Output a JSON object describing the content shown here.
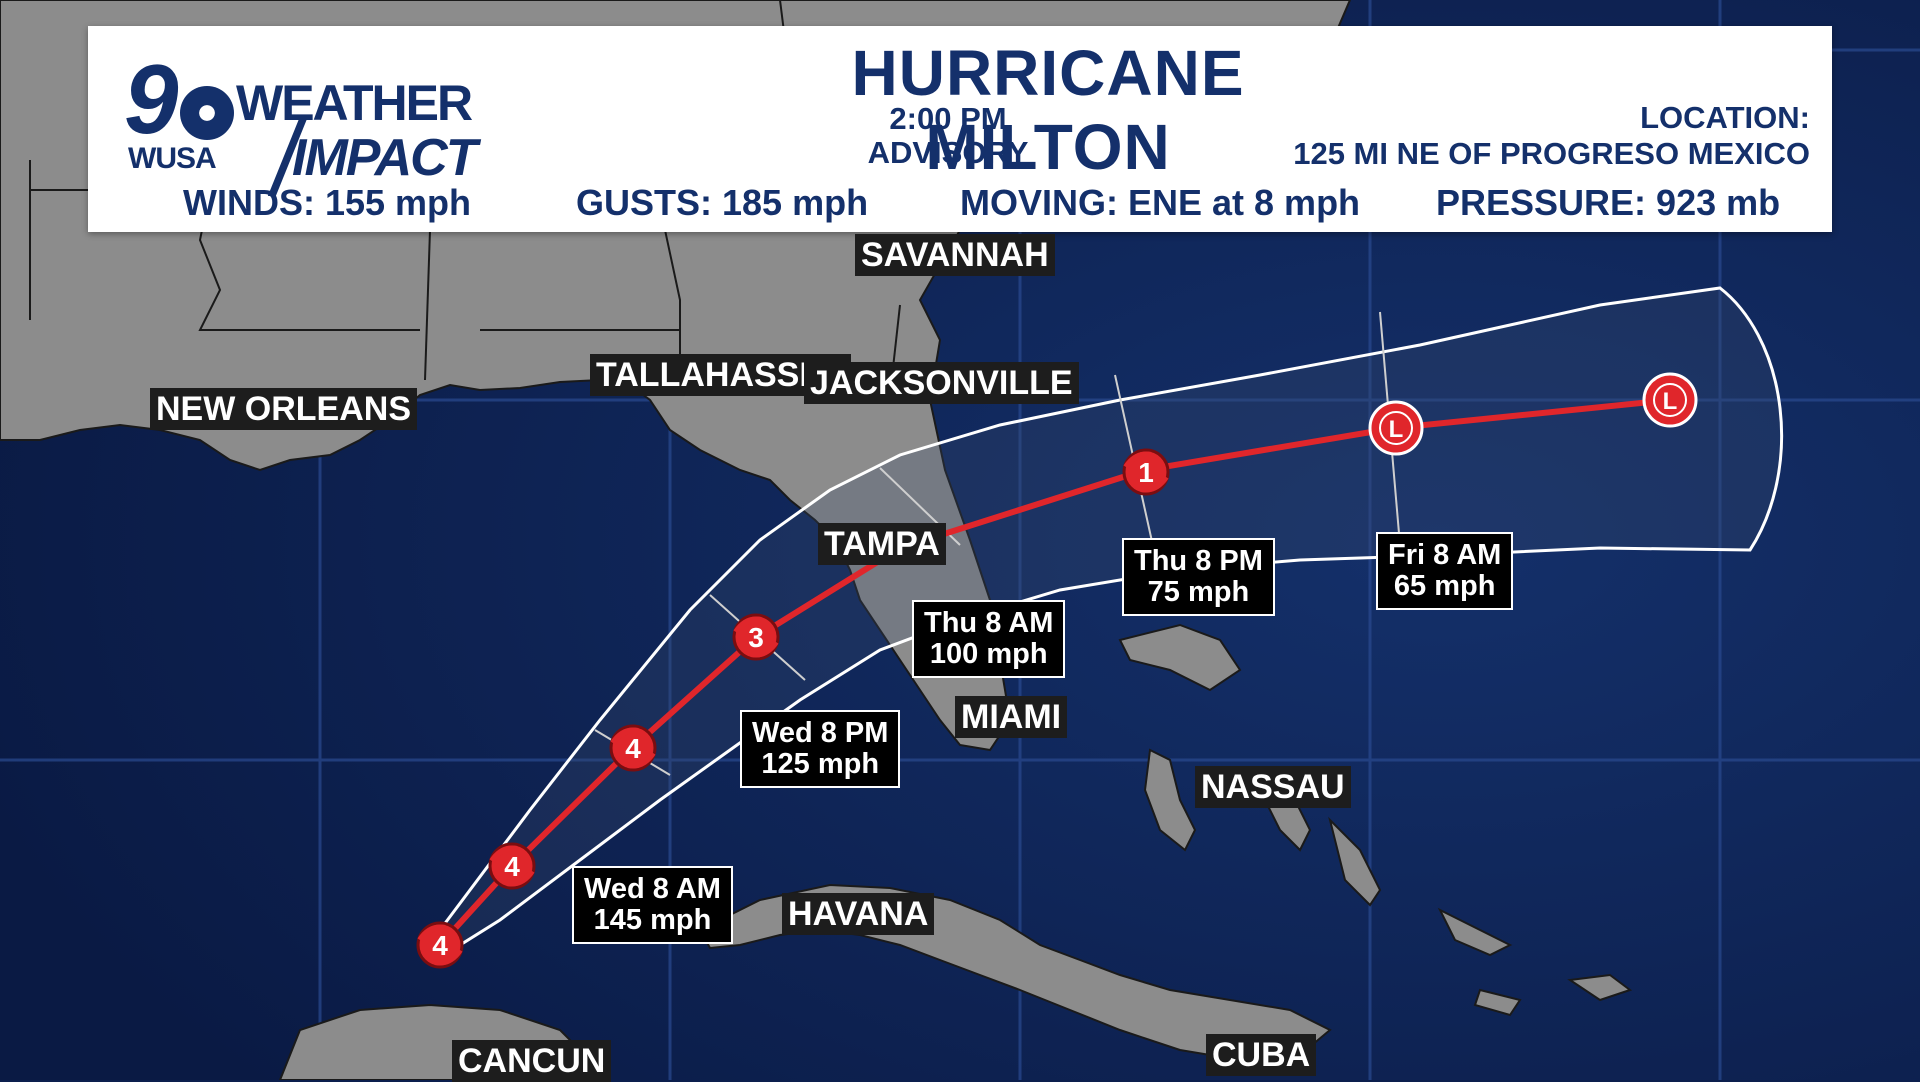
{
  "header": {
    "logo": {
      "number": "9",
      "station": "WUSA",
      "line1": "WEATHER",
      "line2": "IMPACT"
    },
    "title": "HURRICANE MILTON",
    "advisory_time": "2:00 PM",
    "advisory_label": "ADVISORY",
    "location_label": "LOCATION:",
    "location_value": "125 MI NE OF PROGRESO MEXICO",
    "winds": "WINDS:  155 mph",
    "gusts": "GUSTS:  185 mph",
    "moving": "MOVING: ENE at 8 mph",
    "pressure": "PRESSURE: 923 mb"
  },
  "cities": {
    "savannah": "SAVANNAH",
    "tallahassee": "TALLAHASSEE",
    "jacksonville": "JACKSONVILLE",
    "new_orleans": "NEW ORLEANS",
    "tampa": "TAMPA",
    "miami": "MIAMI",
    "nassau": "NASSAU",
    "havana": "HAVANA",
    "cancun": "CANCUN",
    "cuba": "CUBA"
  },
  "forecast": {
    "wed_am": {
      "time": "Wed 8 AM",
      "wind": "145 mph"
    },
    "wed_pm": {
      "time": "Wed 8 PM",
      "wind": "125 mph"
    },
    "thu_am": {
      "time": "Thu 8 AM",
      "wind": "100 mph"
    },
    "thu_pm": {
      "time": "Thu 8 PM",
      "wind": "75 mph"
    },
    "fri_am": {
      "time": "Fri 8 AM",
      "wind": "65 mph"
    }
  },
  "track_markers": [
    "4",
    "4",
    "4",
    "3",
    "1",
    "L",
    "L"
  ],
  "colors": {
    "ocean": "#0c1f4e",
    "land": "#8a8a8a",
    "track": "#e0262b",
    "brand": "#14306b"
  }
}
